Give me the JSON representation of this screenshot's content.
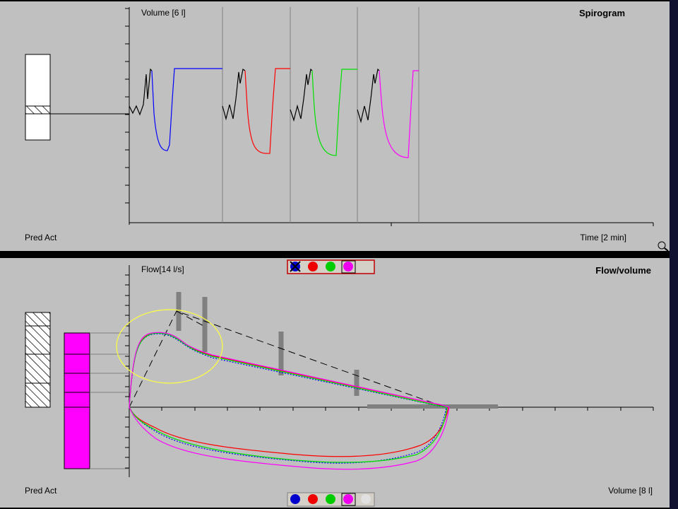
{
  "spirogram": {
    "title": "Spirogram",
    "y_axis_label": "Volume [6 l]",
    "x_axis_label": "Time [2 min]",
    "bar_label": "Pred Act"
  },
  "flow_volume": {
    "title": "Flow/volume",
    "y_axis_label": "Flow[14 l/s]",
    "x_axis_label": "Volume [8 l]",
    "bar_label": "Pred Act"
  }
}
